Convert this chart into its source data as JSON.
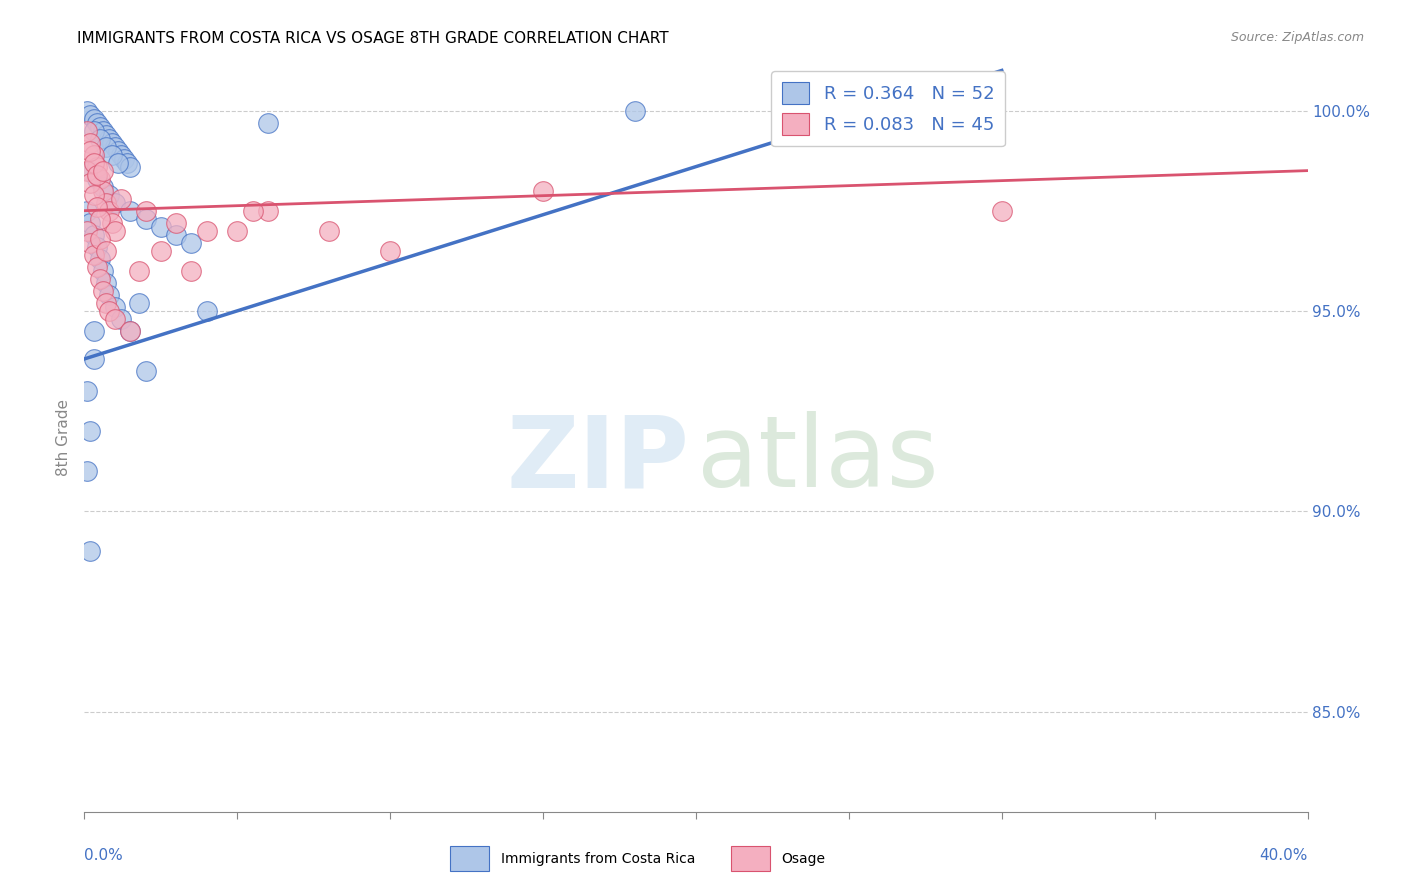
{
  "title": "IMMIGRANTS FROM COSTA RICA VS OSAGE 8TH GRADE CORRELATION CHART",
  "source": "Source: ZipAtlas.com",
  "ylabel": "8th Grade",
  "ylabel_right_ticks": [
    85.0,
    90.0,
    95.0,
    100.0
  ],
  "xmin": 0.0,
  "xmax": 40.0,
  "ymin": 82.5,
  "ymax": 101.2,
  "legend_blue": "R = 0.364   N = 52",
  "legend_pink": "R = 0.083   N = 45",
  "blue_scatter": [
    [
      0.1,
      100.0
    ],
    [
      0.2,
      99.9
    ],
    [
      0.3,
      99.8
    ],
    [
      0.4,
      99.7
    ],
    [
      0.5,
      99.6
    ],
    [
      0.6,
      99.5
    ],
    [
      0.7,
      99.4
    ],
    [
      0.8,
      99.3
    ],
    [
      0.9,
      99.2
    ],
    [
      1.0,
      99.1
    ],
    [
      1.1,
      99.0
    ],
    [
      1.2,
      98.9
    ],
    [
      1.3,
      98.8
    ],
    [
      1.4,
      98.7
    ],
    [
      1.5,
      98.6
    ],
    [
      0.3,
      99.5
    ],
    [
      0.5,
      99.3
    ],
    [
      0.7,
      99.1
    ],
    [
      0.9,
      98.9
    ],
    [
      1.1,
      98.7
    ],
    [
      0.2,
      98.5
    ],
    [
      0.4,
      98.3
    ],
    [
      0.6,
      98.1
    ],
    [
      0.8,
      97.9
    ],
    [
      1.0,
      97.7
    ],
    [
      1.5,
      97.5
    ],
    [
      2.0,
      97.3
    ],
    [
      2.5,
      97.1
    ],
    [
      3.0,
      96.9
    ],
    [
      3.5,
      96.7
    ],
    [
      0.1,
      97.5
    ],
    [
      0.2,
      97.2
    ],
    [
      0.3,
      96.9
    ],
    [
      0.4,
      96.6
    ],
    [
      0.5,
      96.3
    ],
    [
      0.6,
      96.0
    ],
    [
      0.7,
      95.7
    ],
    [
      0.8,
      95.4
    ],
    [
      1.0,
      95.1
    ],
    [
      1.2,
      94.8
    ],
    [
      1.5,
      94.5
    ],
    [
      2.0,
      93.5
    ],
    [
      0.1,
      93.0
    ],
    [
      0.2,
      92.0
    ],
    [
      0.3,
      93.8
    ],
    [
      1.8,
      95.2
    ],
    [
      4.0,
      95.0
    ],
    [
      0.1,
      91.0
    ],
    [
      0.2,
      89.0
    ],
    [
      6.0,
      99.7
    ],
    [
      18.0,
      100.0
    ],
    [
      0.3,
      94.5
    ]
  ],
  "pink_scatter": [
    [
      0.1,
      99.5
    ],
    [
      0.2,
      99.2
    ],
    [
      0.3,
      98.9
    ],
    [
      0.4,
      98.6
    ],
    [
      0.5,
      98.3
    ],
    [
      0.6,
      98.0
    ],
    [
      0.7,
      97.7
    ],
    [
      0.8,
      97.5
    ],
    [
      0.9,
      97.2
    ],
    [
      1.0,
      97.0
    ],
    [
      0.1,
      98.5
    ],
    [
      0.2,
      98.2
    ],
    [
      0.3,
      97.9
    ],
    [
      0.4,
      97.6
    ],
    [
      0.5,
      97.3
    ],
    [
      0.1,
      97.0
    ],
    [
      0.2,
      96.7
    ],
    [
      0.3,
      96.4
    ],
    [
      0.4,
      96.1
    ],
    [
      0.5,
      95.8
    ],
    [
      0.6,
      95.5
    ],
    [
      0.7,
      95.2
    ],
    [
      0.8,
      95.0
    ],
    [
      1.0,
      94.8
    ],
    [
      1.5,
      94.5
    ],
    [
      0.2,
      99.0
    ],
    [
      0.3,
      98.7
    ],
    [
      0.4,
      98.4
    ],
    [
      2.0,
      97.5
    ],
    [
      3.0,
      97.2
    ],
    [
      5.0,
      97.0
    ],
    [
      6.0,
      97.5
    ],
    [
      8.0,
      97.0
    ],
    [
      10.0,
      96.5
    ],
    [
      15.0,
      98.0
    ],
    [
      1.8,
      96.0
    ],
    [
      0.5,
      96.8
    ],
    [
      0.7,
      96.5
    ],
    [
      1.2,
      97.8
    ],
    [
      2.5,
      96.5
    ],
    [
      4.0,
      97.0
    ],
    [
      5.5,
      97.5
    ],
    [
      3.5,
      96.0
    ],
    [
      0.6,
      98.5
    ],
    [
      30.0,
      97.5
    ]
  ],
  "blue_line_x": [
    0.0,
    30.0
  ],
  "blue_line_y": [
    93.8,
    101.0
  ],
  "pink_line_x": [
    0.0,
    40.0
  ],
  "pink_line_y": [
    97.5,
    98.5
  ],
  "blue_color": "#4472c4",
  "blue_fill": "#aec6e8",
  "pink_color": "#d9536f",
  "pink_fill": "#f4afc0",
  "grid_color": "#cccccc",
  "title_fontsize": 11,
  "source_fontsize": 9,
  "axis_tick_color": "#4472c4",
  "ylabel_color": "#888888",
  "bottom_legend_items": [
    "Immigrants from Costa Rica",
    "Osage"
  ]
}
